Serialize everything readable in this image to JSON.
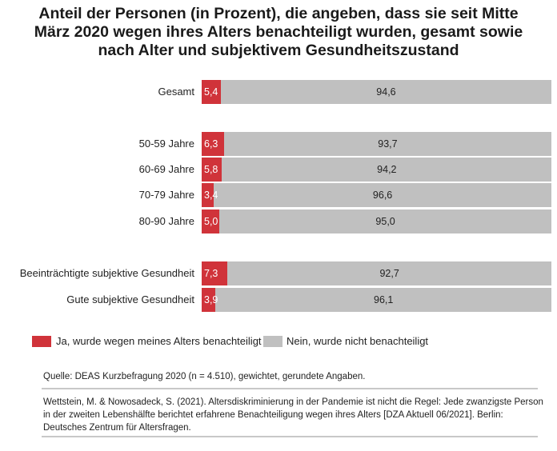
{
  "chart_data": {
    "type": "bar",
    "stacked": true,
    "orientation": "horizontal",
    "title": "Anteil der Personen (in Prozent), die angeben, dass sie seit Mitte März 2020 wegen ihres Alters benachteiligt wurden, gesamt sowie nach Alter und subjektivem Gesundheitszustand",
    "title_lines": [
      "Anteil der Personen (in Prozent), die angeben, dass sie seit Mitte",
      "März 2020 wegen ihres Alters benachteiligt wurden, gesamt sowie",
      "nach Alter und subjektivem Gesundheitszustand"
    ],
    "categories": [
      "Gesamt",
      "50-59 Jahre",
      "60-69 Jahre",
      "70-79 Jahre",
      "80-90 Jahre",
      "Beeinträchtigte subjektive Gesundheit",
      "Gute subjektive Gesundheit"
    ],
    "groups": [
      [
        0
      ],
      [
        1,
        2,
        3,
        4
      ],
      [
        5,
        6
      ]
    ],
    "series": [
      {
        "name": "Ja, wurde wegen meines Alters benachteiligt",
        "color": "#d0333a",
        "values": [
          5.4,
          6.3,
          5.8,
          3.4,
          5.0,
          7.3,
          3.9
        ],
        "labels": [
          "5,4",
          "6,3",
          "5,8",
          "3,4",
          "5,0",
          "7,3",
          "3,9"
        ]
      },
      {
        "name": "Nein, wurde nicht benachteiligt",
        "color": "#c0c0c0",
        "values": [
          94.6,
          93.7,
          94.2,
          96.6,
          95.0,
          92.7,
          96.1
        ],
        "labels": [
          "94,6",
          "93,7",
          "94,2",
          "96,6",
          "95,0",
          "92,7",
          "96,1"
        ]
      }
    ],
    "xlim": [
      0,
      100
    ],
    "grid": false,
    "legend_position": "bottom"
  },
  "notes": {
    "source": "Quelle: DEAS Kurzbefragung 2020 (n = 4.510), gewichtet, gerundete Angaben.",
    "citation": "Wettstein, M. & Nowosadeck, S. (2021). Altersdiskriminierung in der Pandemie ist nicht die Regel: Jede zwanzigste Person in der zweiten Lebenshälfte berichtet erfahrene Benachteiligung wegen ihres Alters  [DZA Aktuell 06/2021]. Berlin: Deutsches Zentrum für Altersfragen."
  }
}
